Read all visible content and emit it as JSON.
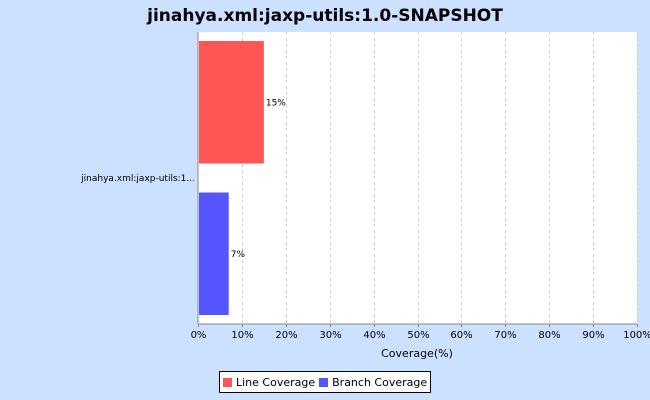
{
  "chart_data": {
    "type": "bar",
    "orientation": "horizontal",
    "title": "jinahya.xml:jaxp-utils:1.0-SNAPSHOT",
    "categories": [
      "jinahya.xml:jaxp-utils:1..."
    ],
    "series": [
      {
        "name": "Line Coverage",
        "values": [
          15
        ],
        "color": "#ff5555",
        "label": "15%"
      },
      {
        "name": "Branch Coverage",
        "values": [
          7
        ],
        "color": "#5555ff",
        "label": "7%"
      }
    ],
    "xlabel": "Coverage(%)",
    "ylabel": "",
    "xlim": [
      0,
      100
    ],
    "xticks": [
      "0%",
      "10%",
      "20%",
      "30%",
      "40%",
      "50%",
      "60%",
      "70%",
      "80%",
      "90%",
      "100%"
    ],
    "grid": true,
    "legend_position": "bottom"
  }
}
